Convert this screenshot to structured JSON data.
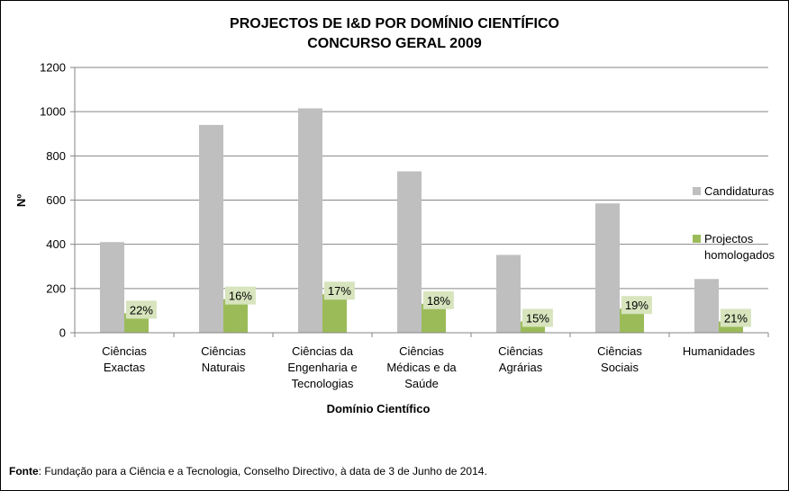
{
  "chart_data": {
    "type": "bar",
    "title": [
      "PROJECTOS DE I&D POR DOMÍNIO CIENTÍFICO",
      "CONCURSO GERAL 2009"
    ],
    "xlabel": "Domínio Científico",
    "ylabel": "Nº",
    "ylim": [
      0,
      1200
    ],
    "yticks": [
      0,
      200,
      400,
      600,
      800,
      1000,
      1200
    ],
    "grid": true,
    "legend_position": "right",
    "categories": [
      [
        "Ciências",
        "Exactas"
      ],
      [
        "Ciências",
        "Naturais"
      ],
      [
        "Ciências da",
        "Engenharia e",
        "Tecnologias"
      ],
      [
        "Ciências",
        "Médicas e da",
        "Saúde"
      ],
      [
        "Ciências",
        "Agrárias"
      ],
      [
        "Ciências",
        "Sociais"
      ],
      [
        "Humanidades"
      ]
    ],
    "series": [
      {
        "name": "Candidaturas",
        "legend_lines": [
          "Candidaturas"
        ],
        "color": "#bfbfbf",
        "values": [
          410,
          940,
          1015,
          730,
          352,
          585,
          243
        ]
      },
      {
        "name": "Projectos homologados",
        "legend_lines": [
          "Projectos",
          "homologados"
        ],
        "color": "#9bbb59",
        "values": [
          88,
          152,
          174,
          131,
          51,
          109,
          51
        ],
        "data_labels": [
          "22%",
          "16%",
          "17%",
          "18%",
          "15%",
          "19%",
          "21%"
        ]
      }
    ],
    "data_label_bg": "#d7e4bd"
  },
  "footnote": {
    "label": "Fonte",
    "text": ": Fundação para a Ciência e a Tecnologia, Conselho Directivo, à data de 3 de Junho de 2014."
  }
}
